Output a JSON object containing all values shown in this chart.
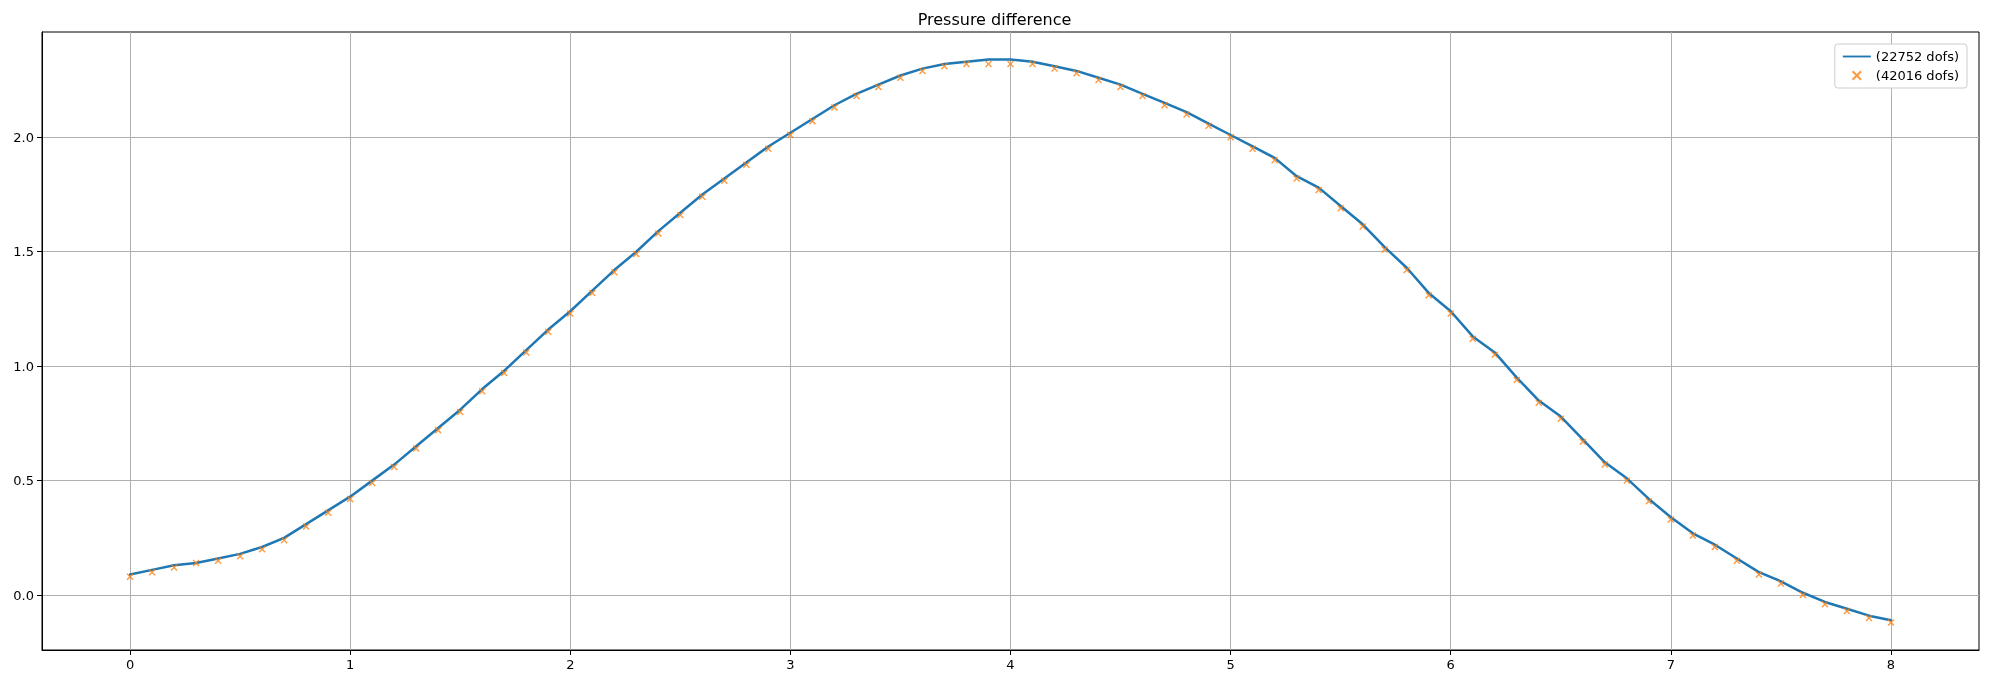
{
  "chart_data": {
    "type": "line",
    "title": "Pressure difference",
    "xlim": [
      -0.4,
      8.4
    ],
    "xticks": [
      0,
      1,
      2,
      3,
      4,
      5,
      6,
      7,
      8
    ],
    "ylim": [
      -0.24,
      2.46
    ],
    "yticks": [
      {
        "value": 0,
        "label": "0.0"
      },
      {
        "value": 0.5,
        "label": "0.5"
      },
      {
        "value": 1,
        "label": "1.0"
      },
      {
        "value": 1.5,
        "label": "1.5"
      },
      {
        "value": 2,
        "label": "2.0"
      }
    ],
    "grid": true,
    "legend": "top right",
    "series": [
      {
        "name": "(22752 dofs)",
        "marker": "none",
        "line_style": "solid",
        "color": "#1f77b4",
        "x": [
          0,
          0.1,
          0.2,
          0.3,
          0.4,
          0.5,
          0.6,
          0.7,
          0.8,
          0.9,
          1,
          1.1,
          1.2,
          1.3,
          1.4,
          1.5,
          1.6,
          1.7,
          1.8,
          1.9,
          2,
          2.1,
          2.2,
          2.3,
          2.4,
          2.5,
          2.6,
          2.7,
          2.8,
          2.9,
          3,
          3.1,
          3.2,
          3.3,
          3.4,
          3.5,
          3.6,
          3.7,
          3.8,
          3.9,
          4,
          4.1,
          4.2,
          4.3,
          4.4,
          4.5,
          4.6,
          4.7,
          4.8,
          4.9,
          5,
          5.1,
          5.2,
          5.3,
          5.4,
          5.5,
          5.6,
          5.7,
          5.8,
          5.9,
          6,
          6.1,
          6.2,
          6.3,
          6.4,
          6.5,
          6.6,
          6.7,
          6.8,
          6.9,
          7,
          7.1,
          7.2,
          7.3,
          7.4,
          7.5,
          7.6,
          7.7,
          7.8,
          7.9,
          8
        ],
        "values": [
          0.09,
          0.11,
          0.13,
          0.14,
          0.16,
          0.18,
          0.21,
          0.25,
          0.31,
          0.37,
          0.43,
          0.5,
          0.57,
          0.65,
          0.73,
          0.81,
          0.9,
          0.98,
          1.07,
          1.16,
          1.24,
          1.33,
          1.42,
          1.5,
          1.59,
          1.67,
          1.75,
          1.82,
          1.89,
          1.96,
          2.02,
          2.08,
          2.14,
          2.19,
          2.23,
          2.27,
          2.3,
          2.32,
          2.33,
          2.34,
          2.34,
          2.33,
          2.31,
          2.29,
          2.26,
          2.23,
          2.19,
          2.15,
          2.11,
          2.06,
          2.01,
          1.96,
          1.91,
          1.83,
          1.78,
          1.7,
          1.62,
          1.52,
          1.43,
          1.32,
          1.24,
          1.13,
          1.06,
          0.95,
          0.85,
          0.78,
          0.68,
          0.58,
          0.51,
          0.42,
          0.34,
          0.27,
          0.22,
          0.16,
          0.1,
          0.06,
          0.01,
          -0.03,
          -0.06,
          -0.09,
          -0.11
        ]
      },
      {
        "name": "(42016 dofs)",
        "type": "scatter",
        "marker": "cross",
        "color": "#ff7f0e",
        "x": [
          0,
          0.1,
          0.2,
          0.3,
          0.4,
          0.5,
          0.6,
          0.7,
          0.8,
          0.9,
          1,
          1.1,
          1.2,
          1.3,
          1.4,
          1.5,
          1.6,
          1.7,
          1.8,
          1.9,
          2,
          2.1,
          2.2,
          2.3,
          2.4,
          2.5,
          2.6,
          2.7,
          2.8,
          2.9,
          3,
          3.1,
          3.2,
          3.3,
          3.4,
          3.5,
          3.6,
          3.7,
          3.8,
          3.9,
          4,
          4.1,
          4.2,
          4.3,
          4.4,
          4.5,
          4.6,
          4.7,
          4.8,
          4.9,
          5,
          5.1,
          5.2,
          5.3,
          5.4,
          5.5,
          5.6,
          5.7,
          5.8,
          5.9,
          6,
          6.1,
          6.2,
          6.3,
          6.4,
          6.5,
          6.6,
          6.7,
          6.8,
          6.9,
          7,
          7.1,
          7.2,
          7.3,
          7.4,
          7.5,
          7.6,
          7.7,
          7.8,
          7.9,
          8
        ],
        "values": [
          0.08,
          0.1,
          0.12,
          0.14,
          0.15,
          0.17,
          0.2,
          0.24,
          0.3,
          0.36,
          0.42,
          0.49,
          0.56,
          0.64,
          0.72,
          0.8,
          0.89,
          0.97,
          1.06,
          1.15,
          1.23,
          1.32,
          1.41,
          1.49,
          1.58,
          1.66,
          1.74,
          1.81,
          1.88,
          1.95,
          2.01,
          2.07,
          2.13,
          2.18,
          2.22,
          2.26,
          2.29,
          2.31,
          2.32,
          2.32,
          2.32,
          2.32,
          2.3,
          2.28,
          2.25,
          2.22,
          2.18,
          2.14,
          2.1,
          2.05,
          2,
          1.95,
          1.9,
          1.82,
          1.77,
          1.69,
          1.61,
          1.51,
          1.42,
          1.31,
          1.23,
          1.12,
          1.05,
          0.94,
          0.84,
          0.77,
          0.67,
          0.57,
          0.5,
          0.41,
          0.33,
          0.26,
          0.21,
          0.15,
          0.09,
          0.05,
          0,
          -0.04,
          -0.07,
          -0.1,
          -0.12
        ]
      }
    ]
  }
}
